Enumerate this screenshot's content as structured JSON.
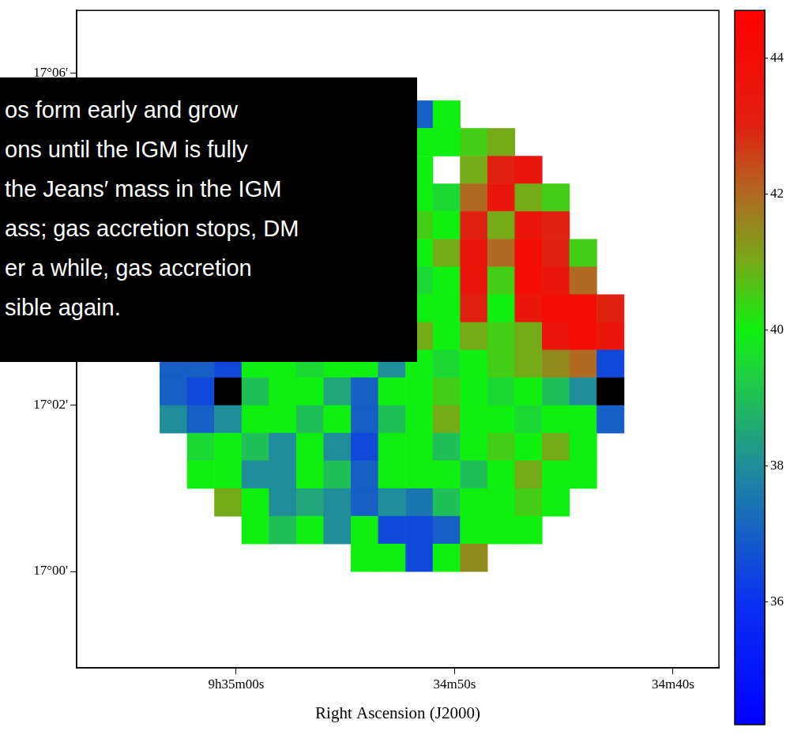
{
  "chart_data": {
    "type": "heatmap",
    "x_label": "Right Ascension (J2000)",
    "xlim": [
      67.3,
      37.9
    ],
    "xticks": [
      {
        "value": 60,
        "label": "9h35m00s"
      },
      {
        "value": 50,
        "label": "34m50s"
      },
      {
        "value": 40,
        "label": "34m40s"
      }
    ],
    "ylim": [
      -1.16,
      6.75
    ],
    "yticks": [
      {
        "value": 0,
        "label": "17°00'"
      },
      {
        "value": 2,
        "label": "17°02'"
      },
      {
        "value": 6,
        "label": "17°06'"
      }
    ],
    "grid": false,
    "cells": {
      "x": [
        62.875,
        61.625,
        60.375,
        59.125,
        57.875,
        56.625,
        55.375,
        54.125,
        52.875,
        51.625,
        50.375,
        49.125,
        47.875,
        46.625,
        45.375,
        44.125,
        42.875
      ],
      "y": [
        5.833,
        5.5,
        5.167,
        4.833,
        4.5,
        4.167,
        3.833,
        3.5,
        3.167,
        2.833,
        2.5,
        2.167,
        1.833,
        1.5,
        1.167,
        0.833,
        0.5,
        0.167
      ],
      "values": [
        [
          null,
          null,
          null,
          null,
          null,
          null,
          null,
          null,
          null,
          null,
          null,
          null,
          null,
          null,
          null,
          null,
          null
        ],
        [
          null,
          null,
          null,
          null,
          null,
          null,
          null,
          null,
          null,
          37,
          40,
          null,
          null,
          null,
          null,
          null,
          null
        ],
        [
          null,
          null,
          null,
          null,
          null,
          null,
          null,
          null,
          null,
          40,
          40,
          40.5,
          41,
          null,
          null,
          null,
          null
        ],
        [
          null,
          null,
          null,
          null,
          null,
          null,
          null,
          null,
          null,
          40,
          null,
          41,
          43,
          43.5,
          null,
          null,
          null
        ],
        [
          null,
          null,
          null,
          null,
          null,
          null,
          null,
          null,
          null,
          40,
          39.5,
          42,
          43.5,
          41,
          40.5,
          null,
          null
        ],
        [
          null,
          null,
          null,
          null,
          null,
          null,
          null,
          null,
          null,
          40.5,
          40,
          43,
          41,
          43.5,
          43,
          null,
          null
        ],
        [
          null,
          null,
          null,
          null,
          null,
          null,
          null,
          null,
          null,
          40,
          41,
          43.5,
          42,
          44,
          43,
          40.5,
          null
        ],
        [
          null,
          null,
          null,
          null,
          null,
          null,
          null,
          null,
          null,
          39.5,
          40,
          43.5,
          40.5,
          44,
          43.5,
          42,
          null
        ],
        [
          null,
          null,
          null,
          null,
          null,
          null,
          null,
          null,
          null,
          40,
          40,
          43,
          40,
          43.5,
          44,
          44,
          43
        ],
        [
          null,
          null,
          null,
          null,
          null,
          null,
          null,
          null,
          null,
          41,
          40,
          41,
          40.5,
          41,
          43.5,
          44,
          43.5
        ],
        [
          37,
          37,
          36.5,
          40,
          40,
          39.5,
          40,
          40,
          38,
          40,
          39.5,
          40,
          40.5,
          41,
          41.5,
          42,
          36.5
        ],
        [
          37,
          36.5,
          34,
          39,
          40,
          40,
          38.5,
          37,
          40,
          40,
          40.5,
          40,
          39.5,
          40,
          39,
          38,
          34
        ],
        [
          38,
          37,
          38,
          40,
          40,
          39,
          40,
          37,
          39,
          40,
          41,
          40,
          40,
          39.5,
          40,
          40,
          37
        ],
        [
          null,
          39.5,
          40,
          39,
          38,
          40,
          38,
          36.5,
          40,
          40,
          39,
          40,
          40.5,
          40,
          41,
          40,
          null
        ],
        [
          null,
          40,
          40,
          38,
          38,
          40,
          39,
          37,
          40,
          40,
          40,
          39,
          40,
          41,
          40,
          40,
          null
        ],
        [
          null,
          null,
          41,
          40,
          38,
          38.5,
          38,
          37,
          38,
          37.5,
          39,
          40,
          40,
          40.5,
          40,
          null,
          null
        ],
        [
          null,
          null,
          null,
          40,
          39,
          40,
          38,
          40,
          36.5,
          36.5,
          37,
          40,
          40,
          40,
          null,
          null,
          null
        ],
        [
          null,
          null,
          null,
          null,
          null,
          null,
          null,
          40,
          40,
          36.5,
          40,
          41.5,
          null,
          null,
          null,
          null,
          null
        ]
      ]
    },
    "colorbar": {
      "range": [
        34.2,
        44.7
      ],
      "ticks": [
        36,
        38,
        40,
        42,
        44
      ]
    },
    "annotation": [
      "os form early and grow",
      "ons until the IGM is fully",
      "the Jeans′ mass in the IGM",
      "ass; gas accretion stops, DM",
      "er a while, gas accretion",
      "sible again."
    ]
  }
}
